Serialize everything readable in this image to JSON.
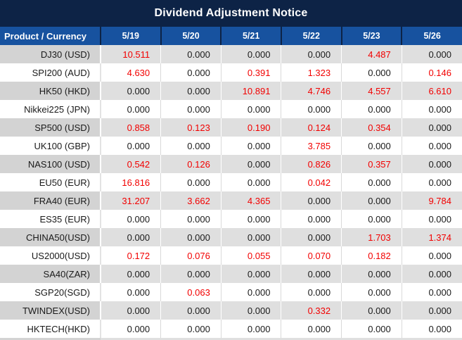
{
  "title": "Dividend Adjustment Notice",
  "table": {
    "columns": [
      "Product / Currency",
      "5/19",
      "5/20",
      "5/21",
      "5/22",
      "5/23",
      "5/26"
    ],
    "rows": [
      {
        "product": "DJ30 (USD)",
        "values": [
          "10.511",
          "0.000",
          "0.000",
          "0.000",
          "4.487",
          "0.000"
        ],
        "red": [
          1,
          0,
          0,
          0,
          1,
          0
        ]
      },
      {
        "product": "SPI200 (AUD)",
        "values": [
          "4.630",
          "0.000",
          "0.391",
          "1.323",
          "0.000",
          "0.146"
        ],
        "red": [
          1,
          0,
          1,
          1,
          0,
          1
        ]
      },
      {
        "product": "HK50 (HKD)",
        "values": [
          "0.000",
          "0.000",
          "10.891",
          "4.746",
          "4.557",
          "6.610"
        ],
        "red": [
          0,
          0,
          1,
          1,
          1,
          1
        ]
      },
      {
        "product": "Nikkei225 (JPN)",
        "values": [
          "0.000",
          "0.000",
          "0.000",
          "0.000",
          "0.000",
          "0.000"
        ],
        "red": [
          0,
          0,
          0,
          0,
          0,
          0
        ]
      },
      {
        "product": "SP500 (USD)",
        "values": [
          "0.858",
          "0.123",
          "0.190",
          "0.124",
          "0.354",
          "0.000"
        ],
        "red": [
          1,
          1,
          1,
          1,
          1,
          0
        ]
      },
      {
        "product": "UK100 (GBP)",
        "values": [
          "0.000",
          "0.000",
          "0.000",
          "3.785",
          "0.000",
          "0.000"
        ],
        "red": [
          0,
          0,
          0,
          1,
          0,
          0
        ]
      },
      {
        "product": "NAS100 (USD)",
        "values": [
          "0.542",
          "0.126",
          "0.000",
          "0.826",
          "0.357",
          "0.000"
        ],
        "red": [
          1,
          1,
          0,
          1,
          1,
          0
        ]
      },
      {
        "product": "EU50 (EUR)",
        "values": [
          "16.816",
          "0.000",
          "0.000",
          "0.042",
          "0.000",
          "0.000"
        ],
        "red": [
          1,
          0,
          0,
          1,
          0,
          0
        ]
      },
      {
        "product": "FRA40 (EUR)",
        "values": [
          "31.207",
          "3.662",
          "4.365",
          "0.000",
          "0.000",
          "9.784"
        ],
        "red": [
          1,
          1,
          1,
          0,
          0,
          1
        ]
      },
      {
        "product": "ES35 (EUR)",
        "values": [
          "0.000",
          "0.000",
          "0.000",
          "0.000",
          "0.000",
          "0.000"
        ],
        "red": [
          0,
          0,
          0,
          0,
          0,
          0
        ]
      },
      {
        "product": "CHINA50(USD)",
        "values": [
          "0.000",
          "0.000",
          "0.000",
          "0.000",
          "1.703",
          "1.374"
        ],
        "red": [
          0,
          0,
          0,
          0,
          1,
          1
        ]
      },
      {
        "product": "US2000(USD)",
        "values": [
          "0.172",
          "0.076",
          "0.055",
          "0.070",
          "0.182",
          "0.000"
        ],
        "red": [
          1,
          1,
          1,
          1,
          1,
          0
        ]
      },
      {
        "product": "SA40(ZAR)",
        "values": [
          "0.000",
          "0.000",
          "0.000",
          "0.000",
          "0.000",
          "0.000"
        ],
        "red": [
          0,
          0,
          0,
          0,
          0,
          0
        ]
      },
      {
        "product": "SGP20(SGD)",
        "values": [
          "0.000",
          "0.063",
          "0.000",
          "0.000",
          "0.000",
          "0.000"
        ],
        "red": [
          0,
          1,
          0,
          0,
          0,
          0
        ]
      },
      {
        "product": "TWINDEX(USD)",
        "values": [
          "0.000",
          "0.000",
          "0.000",
          "0.332",
          "0.000",
          "0.000"
        ],
        "red": [
          0,
          0,
          0,
          1,
          0,
          0
        ]
      },
      {
        "product": "HKTECH(HKD)",
        "values": [
          "0.000",
          "0.000",
          "0.000",
          "0.000",
          "0.000",
          "0.000"
        ],
        "red": [
          0,
          0,
          0,
          0,
          0,
          0
        ]
      }
    ]
  },
  "colors": {
    "navy": "#0d2346",
    "header-blue": "#17529f",
    "header-text": "#ffffff",
    "row-gray-label": "#d3d3d3",
    "row-gray-data": "#dfdfdf",
    "row-white": "#ffffff",
    "value-red": "#f20000",
    "text-black": "#1a1a1a"
  }
}
